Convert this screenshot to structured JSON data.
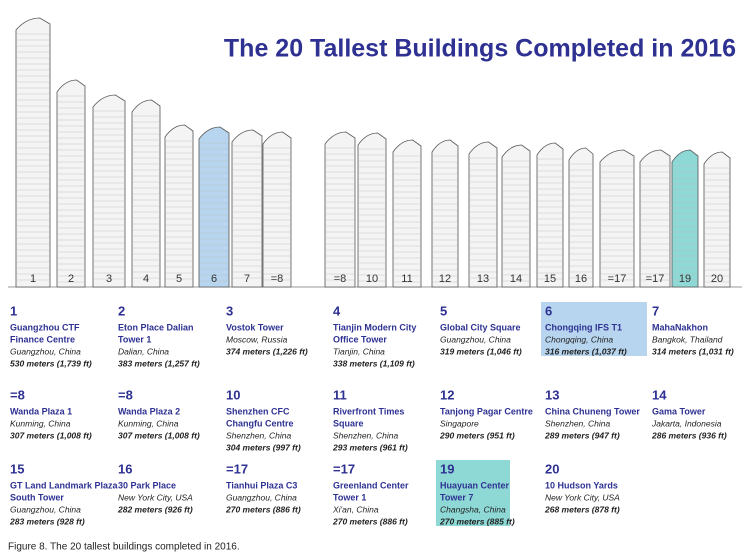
{
  "title": "The 20 Tallest Buildings Completed in 2016",
  "caption": "Figure 8. The 20 tallest buildings completed in 2016.",
  "buildings": [
    {
      "rank": "1",
      "name": [
        "Guangzhou CTF",
        "Finance Centre"
      ],
      "location": "Guangzhou, China",
      "height": "530 meters (1,739 ft)"
    },
    {
      "rank": "2",
      "name": [
        "Eton Place Dalian",
        "Tower 1"
      ],
      "location": "Dalian, China",
      "height": "383 meters (1,257 ft)"
    },
    {
      "rank": "3",
      "name": [
        "Vostok Tower"
      ],
      "location": "Moscow, Russia",
      "height": "374 meters (1,226 ft)"
    },
    {
      "rank": "4",
      "name": [
        "Tianjin Modern City",
        "Office Tower"
      ],
      "location": "Tianjin, China",
      "height": "338 meters (1,109 ft)"
    },
    {
      "rank": "5",
      "name": [
        "Global City Square"
      ],
      "location": "Guangzhou, China",
      "height": "319 meters (1,046 ft)"
    },
    {
      "rank": "6",
      "name": [
        "Chongqing IFS T1"
      ],
      "location": "Chongqing, China",
      "height": "316 meters (1,037 ft)",
      "highlight": "#b7d5ee"
    },
    {
      "rank": "7",
      "name": [
        "MahaNakhon"
      ],
      "location": "Bangkok, Thailand",
      "height": "314 meters (1,031 ft)"
    },
    {
      "rank": "=8",
      "name": [
        "Wanda Plaza 1"
      ],
      "location": "Kunming, China",
      "height": "307 meters (1,008 ft)"
    },
    {
      "rank": "=8",
      "name": [
        "Wanda Plaza 2"
      ],
      "location": "Kunming, China",
      "height": "307 meters (1,008 ft)"
    },
    {
      "rank": "10",
      "name": [
        "Shenzhen CFC",
        "Changfu Centre"
      ],
      "location": "Shenzhen, China",
      "height": "304 meters (997 ft)"
    },
    {
      "rank": "11",
      "name": [
        "Riverfront Times",
        "Square"
      ],
      "location": "Shenzhen, China",
      "height": "293 meters (961 ft)"
    },
    {
      "rank": "12",
      "name": [
        "Tanjong Pagar Centre"
      ],
      "location": "Singapore",
      "height": "290 meters (951 ft)"
    },
    {
      "rank": "13",
      "name": [
        "China Chuneng Tower"
      ],
      "location": "Shenzhen, China",
      "height": "289 meters (947 ft)"
    },
    {
      "rank": "14",
      "name": [
        "Gama Tower"
      ],
      "location": "Jakarta, Indonesia",
      "height": "286 meters (936 ft)"
    },
    {
      "rank": "15",
      "name": [
        "GT Land Landmark Plaza",
        "South Tower"
      ],
      "location": "Guangzhou, China",
      "height": "283 meters (928 ft)"
    },
    {
      "rank": "16",
      "name": [
        "30 Park Place"
      ],
      "location": "New York City, USA",
      "height": "282 meters (926 ft)"
    },
    {
      "rank": "=17",
      "name": [
        "Tianhui Plaza C3"
      ],
      "location": "Guangzhou, China",
      "height": "270 meters (886 ft)"
    },
    {
      "rank": "=17",
      "name": [
        "Greenland Center",
        "Tower 1"
      ],
      "location": "Xi'an, China",
      "height": "270 meters (886 ft)"
    },
    {
      "rank": "19",
      "name": [
        "Huayuan Center",
        "Tower 7"
      ],
      "location": "Changsha, China",
      "height": "270 meters (885 ft)",
      "highlight": "#8ed9d6"
    },
    {
      "rank": "20",
      "name": [
        "10 Hudson Yards"
      ],
      "location": "New York City, USA",
      "height": "268 meters (878 ft)"
    }
  ]
}
